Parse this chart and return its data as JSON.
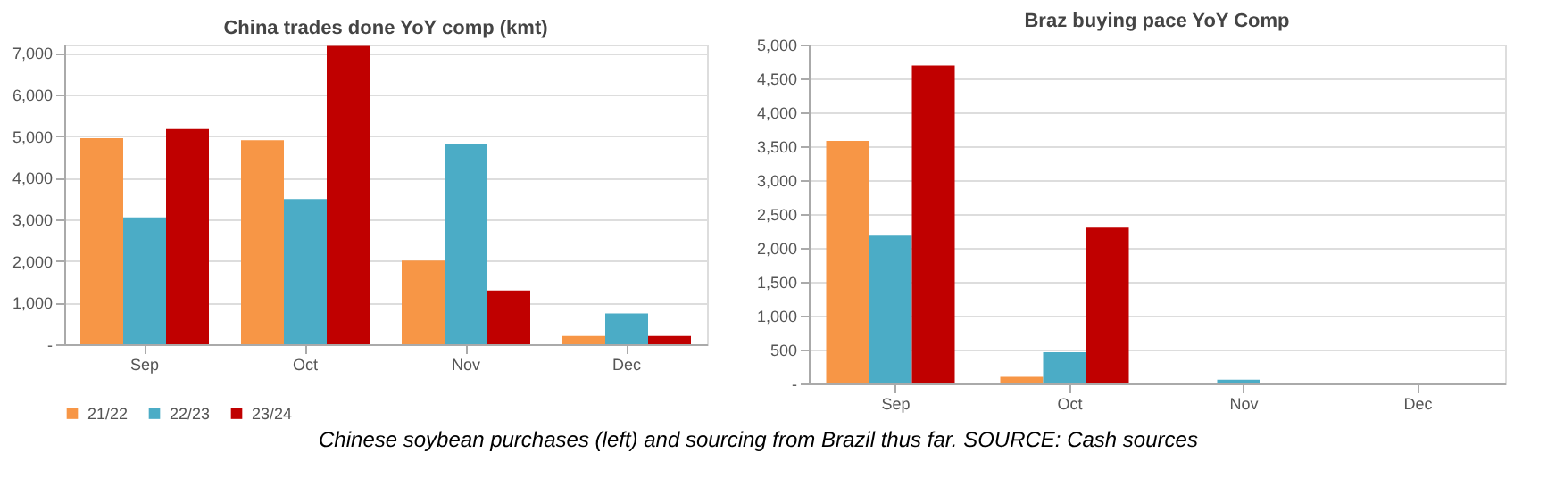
{
  "chart_data": [
    {
      "type": "bar",
      "title": "China trades done YoY comp (kmt)",
      "categories": [
        "Sep",
        "Oct",
        "Nov",
        "Dec"
      ],
      "series": [
        {
          "name": "21/22",
          "color": "#f79646",
          "values": [
            4950,
            4900,
            2010,
            200
          ]
        },
        {
          "name": "22/23",
          "color": "#4bacc6",
          "values": [
            3050,
            3490,
            4810,
            740
          ]
        },
        {
          "name": "23/24",
          "color": "#c00000",
          "values": [
            5170,
            7170,
            1290,
            200
          ]
        }
      ],
      "ylim": [
        0,
        7200
      ],
      "yticks": [
        {
          "value": 0,
          "label": "-"
        },
        {
          "value": 1000,
          "label": "1,000"
        },
        {
          "value": 2000,
          "label": "2,000"
        },
        {
          "value": 3000,
          "label": "3,000"
        },
        {
          "value": 4000,
          "label": "4,000"
        },
        {
          "value": 5000,
          "label": "5,000"
        },
        {
          "value": 6000,
          "label": "6,000"
        },
        {
          "value": 7000,
          "label": "7,000"
        }
      ],
      "grid": "y",
      "legend": "bottom",
      "annotations": [
        "Chinese soybean purchases (left) and sourcing from Brazil thus far. SOURCE: Cash sources"
      ]
    },
    {
      "type": "bar",
      "title": "Braz buying pace YoY Comp",
      "categories": [
        "Sep",
        "Oct",
        "Nov",
        "Dec"
      ],
      "series": [
        {
          "color": "#f79646",
          "values": [
            3580,
            100,
            0,
            0
          ]
        },
        {
          "color": "#4bacc6",
          "values": [
            2180,
            460,
            55,
            0
          ]
        },
        {
          "color": "#c00000",
          "values": [
            4690,
            2300,
            0,
            0
          ]
        }
      ],
      "ylim": [
        0,
        5000
      ],
      "yticks": [
        {
          "value": 0,
          "label": "-"
        },
        {
          "value": 500,
          "label": "500"
        },
        {
          "value": 1000,
          "label": "1,000"
        },
        {
          "value": 1500,
          "label": "1,500"
        },
        {
          "value": 2000,
          "label": "2,000"
        },
        {
          "value": 2500,
          "label": "2,500"
        },
        {
          "value": 3000,
          "label": "3,000"
        },
        {
          "value": 3500,
          "label": "3,500"
        },
        {
          "value": 4000,
          "label": "4,000"
        },
        {
          "value": 4500,
          "label": "4,500"
        },
        {
          "value": 5000,
          "label": "5,000"
        }
      ],
      "grid": "y",
      "legend": false
    }
  ]
}
